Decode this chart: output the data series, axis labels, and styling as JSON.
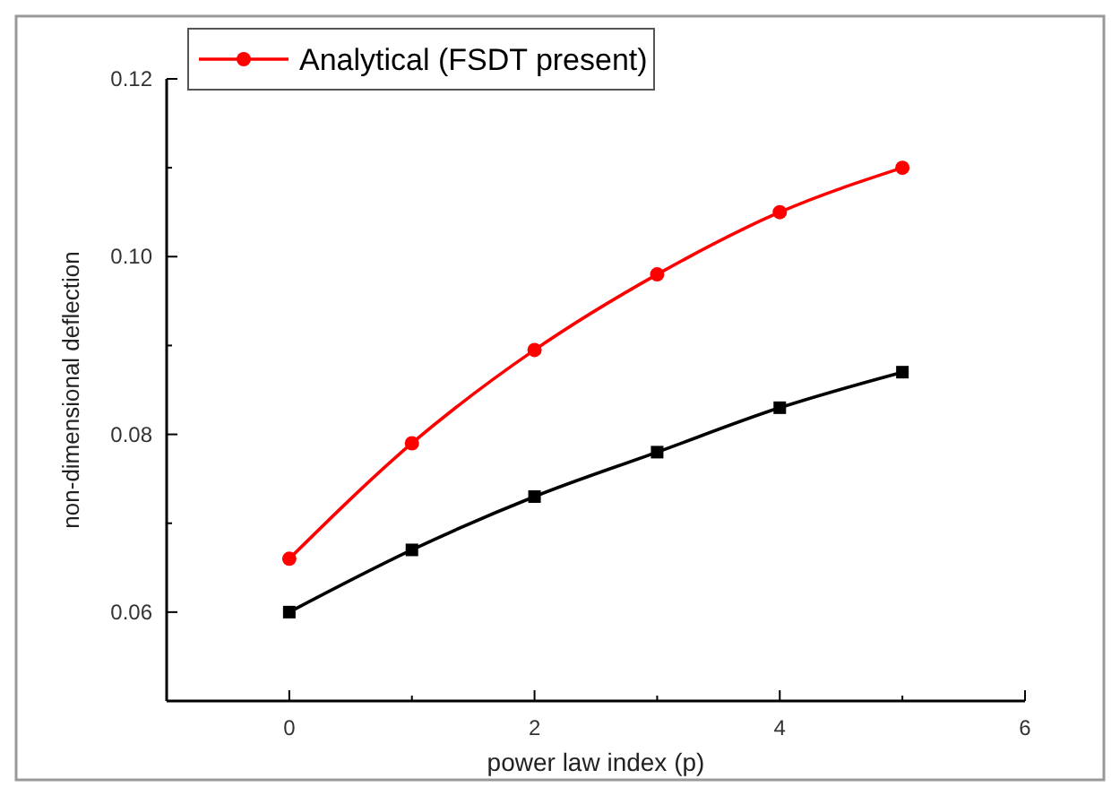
{
  "chart_data": {
    "type": "line",
    "xlabel": "power law index (p)",
    "ylabel": "non-dimensional deflection",
    "x": [
      0,
      1,
      2,
      3,
      4,
      5
    ],
    "series": [
      {
        "color": "#000000",
        "marker": "square",
        "values": [
          0.06,
          0.067,
          0.073,
          0.078,
          0.083,
          0.087
        ]
      },
      {
        "name": "Analytical (FSDT present)",
        "color": "#ff0000",
        "marker": "circle",
        "values": [
          0.066,
          0.079,
          0.0895,
          0.098,
          0.105,
          0.11
        ]
      }
    ],
    "xlim": [
      -1,
      6
    ],
    "xticks": [
      0,
      {
        "value": 1,
        "label": null
      },
      2,
      {
        "value": 3,
        "label": null
      },
      4,
      {
        "value": 5,
        "label": null
      },
      6
    ],
    "ylim": [
      0.05,
      0.12
    ],
    "yticks": [
      {
        "value": 0.05,
        "label": null
      },
      0.06,
      {
        "value": 0.07,
        "label": null
      },
      0.08,
      {
        "value": 0.09,
        "label": null
      },
      {
        "value": 0.1,
        "label": "0.10"
      },
      {
        "value": 0.11,
        "label": null
      },
      0.12
    ],
    "grid": false,
    "legend": "top left",
    "line_style": "solid"
  }
}
